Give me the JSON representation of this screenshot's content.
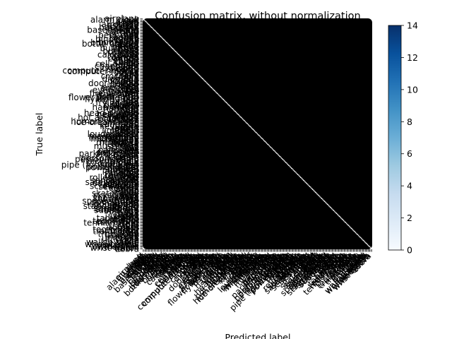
{
  "chart_data": {
    "type": "heatmap",
    "title": "Confusion matrix, without normalization",
    "xlabel": "Predicted label",
    "ylabel": "True label",
    "colormap": "Blues",
    "cell_color": "#000000",
    "cell_text_color": "#ffffff",
    "colorbar": {
      "min": 0,
      "max": 14,
      "ticks": [
        0,
        2,
        4,
        6,
        8,
        10,
        12,
        14
      ]
    },
    "categories": [
      "airplane",
      "alarm clock",
      "angel",
      "ant",
      "apple",
      "arm",
      "armchair",
      "ashtray",
      "axe",
      "backpack",
      "banana",
      "barn",
      "baseball bat",
      "basket",
      "bathtub",
      "bear",
      "bed",
      "bee",
      "beer-mug",
      "bell",
      "bench",
      "bicycle",
      "binoculars",
      "blimp",
      "book",
      "bookshelf",
      "boomerang",
      "bottle opener",
      "bowl",
      "brain",
      "bread",
      "bridge",
      "bulldozer",
      "bus",
      "bush",
      "butterfly",
      "cabinet",
      "cactus",
      "cake",
      "calculator",
      "camel",
      "camera",
      "candle",
      "cannon",
      "canoe",
      "car",
      "carrot",
      "castle",
      "cat",
      "cell phone",
      "chair",
      "chandelier",
      "church",
      "cigarette",
      "cloud",
      "comb",
      "computer monitor",
      "computer-mouse",
      "couch",
      "cow",
      "crab",
      "crane",
      "crocodile",
      "crown",
      "cup",
      "diamond",
      "dog",
      "dolphin",
      "donut",
      "door",
      "door handle",
      "dragon",
      "duck",
      "ear",
      "elephant",
      "envelope",
      "eye",
      "eyeglasses",
      "face",
      "fan",
      "feather",
      "fire hydrant",
      "fish",
      "flashlight",
      "floor lamp",
      "flower with stem",
      "flying bird",
      "flying saucer",
      "foot",
      "fork",
      "frog",
      "frying-pan",
      "giraffe",
      "grapes",
      "grenade",
      "guitar",
      "hamburger",
      "hammer",
      "hand",
      "harp",
      "hat",
      "head",
      "head-phones",
      "hedgehog",
      "helicopter",
      "helmet",
      "horse",
      "hot air balloon",
      "hot-dog",
      "hourglass",
      "house",
      "human-skeleton",
      "ice-cream-cone",
      "ipod",
      "kangaroo",
      "key",
      "keyboard",
      "knife",
      "ladder",
      "laptop",
      "leaf",
      "lightbulb",
      "lighter",
      "lion",
      "lobster",
      "loudspeaker",
      "mailbox",
      "megaphone",
      "mermaid",
      "microphone",
      "microscope",
      "monkey",
      "moon",
      "mosquito",
      "motorbike",
      "mouse",
      "mouth",
      "mug",
      "mushroom",
      "nose",
      "octopus",
      "owl",
      "palm tree",
      "panda",
      "paper clip",
      "parachute",
      "parking meter",
      "parrot",
      "pear",
      "pen",
      "penguin",
      "person sitting",
      "person walking",
      "piano",
      "pickup truck",
      "pig",
      "pigeon",
      "pineapple",
      "pipe (for smoking)",
      "pizza",
      "potted plant",
      "power outlet",
      "present",
      "pretzel",
      "pumpkin",
      "purse",
      "rabbit",
      "race car",
      "radio",
      "rainbow",
      "revolver",
      "rifle",
      "rollerblades",
      "rooster",
      "sailboat",
      "santa claus",
      "satellite",
      "satellite dish",
      "saxophone",
      "scissors",
      "scorpion",
      "screwdriver",
      "sea turtle",
      "seagull",
      "shark",
      "sheep",
      "ship",
      "shoe",
      "shovel",
      "skateboard",
      "skull",
      "skyscraper",
      "snail",
      "snake",
      "snowboard",
      "snowman",
      "socks",
      "space shuttle",
      "speed-boat",
      "spider",
      "sponge bob",
      "spoon",
      "squirrel",
      "standing bird",
      "stapler",
      "strawberry",
      "streetlight",
      "submarine",
      "suitcase",
      "sun",
      "suv",
      "swan",
      "sword",
      "syringe",
      "t-shirt",
      "table",
      "tablelamp",
      "teacup",
      "teapot",
      "teddy-bear",
      "telephone",
      "tennis-racket",
      "tent",
      "tiger",
      "tire",
      "toilet",
      "tomato",
      "tooth",
      "toothbrush",
      "tractor",
      "traffic light",
      "train",
      "tree",
      "trombone",
      "trousers",
      "truck",
      "trumpet",
      "tv",
      "umbrella",
      "van",
      "vase",
      "violin",
      "walkie talkie",
      "wheel",
      "wheelbarrow",
      "windmill",
      "wine-bottle",
      "wineglass",
      "wrist-watch",
      "zebra"
    ]
  }
}
